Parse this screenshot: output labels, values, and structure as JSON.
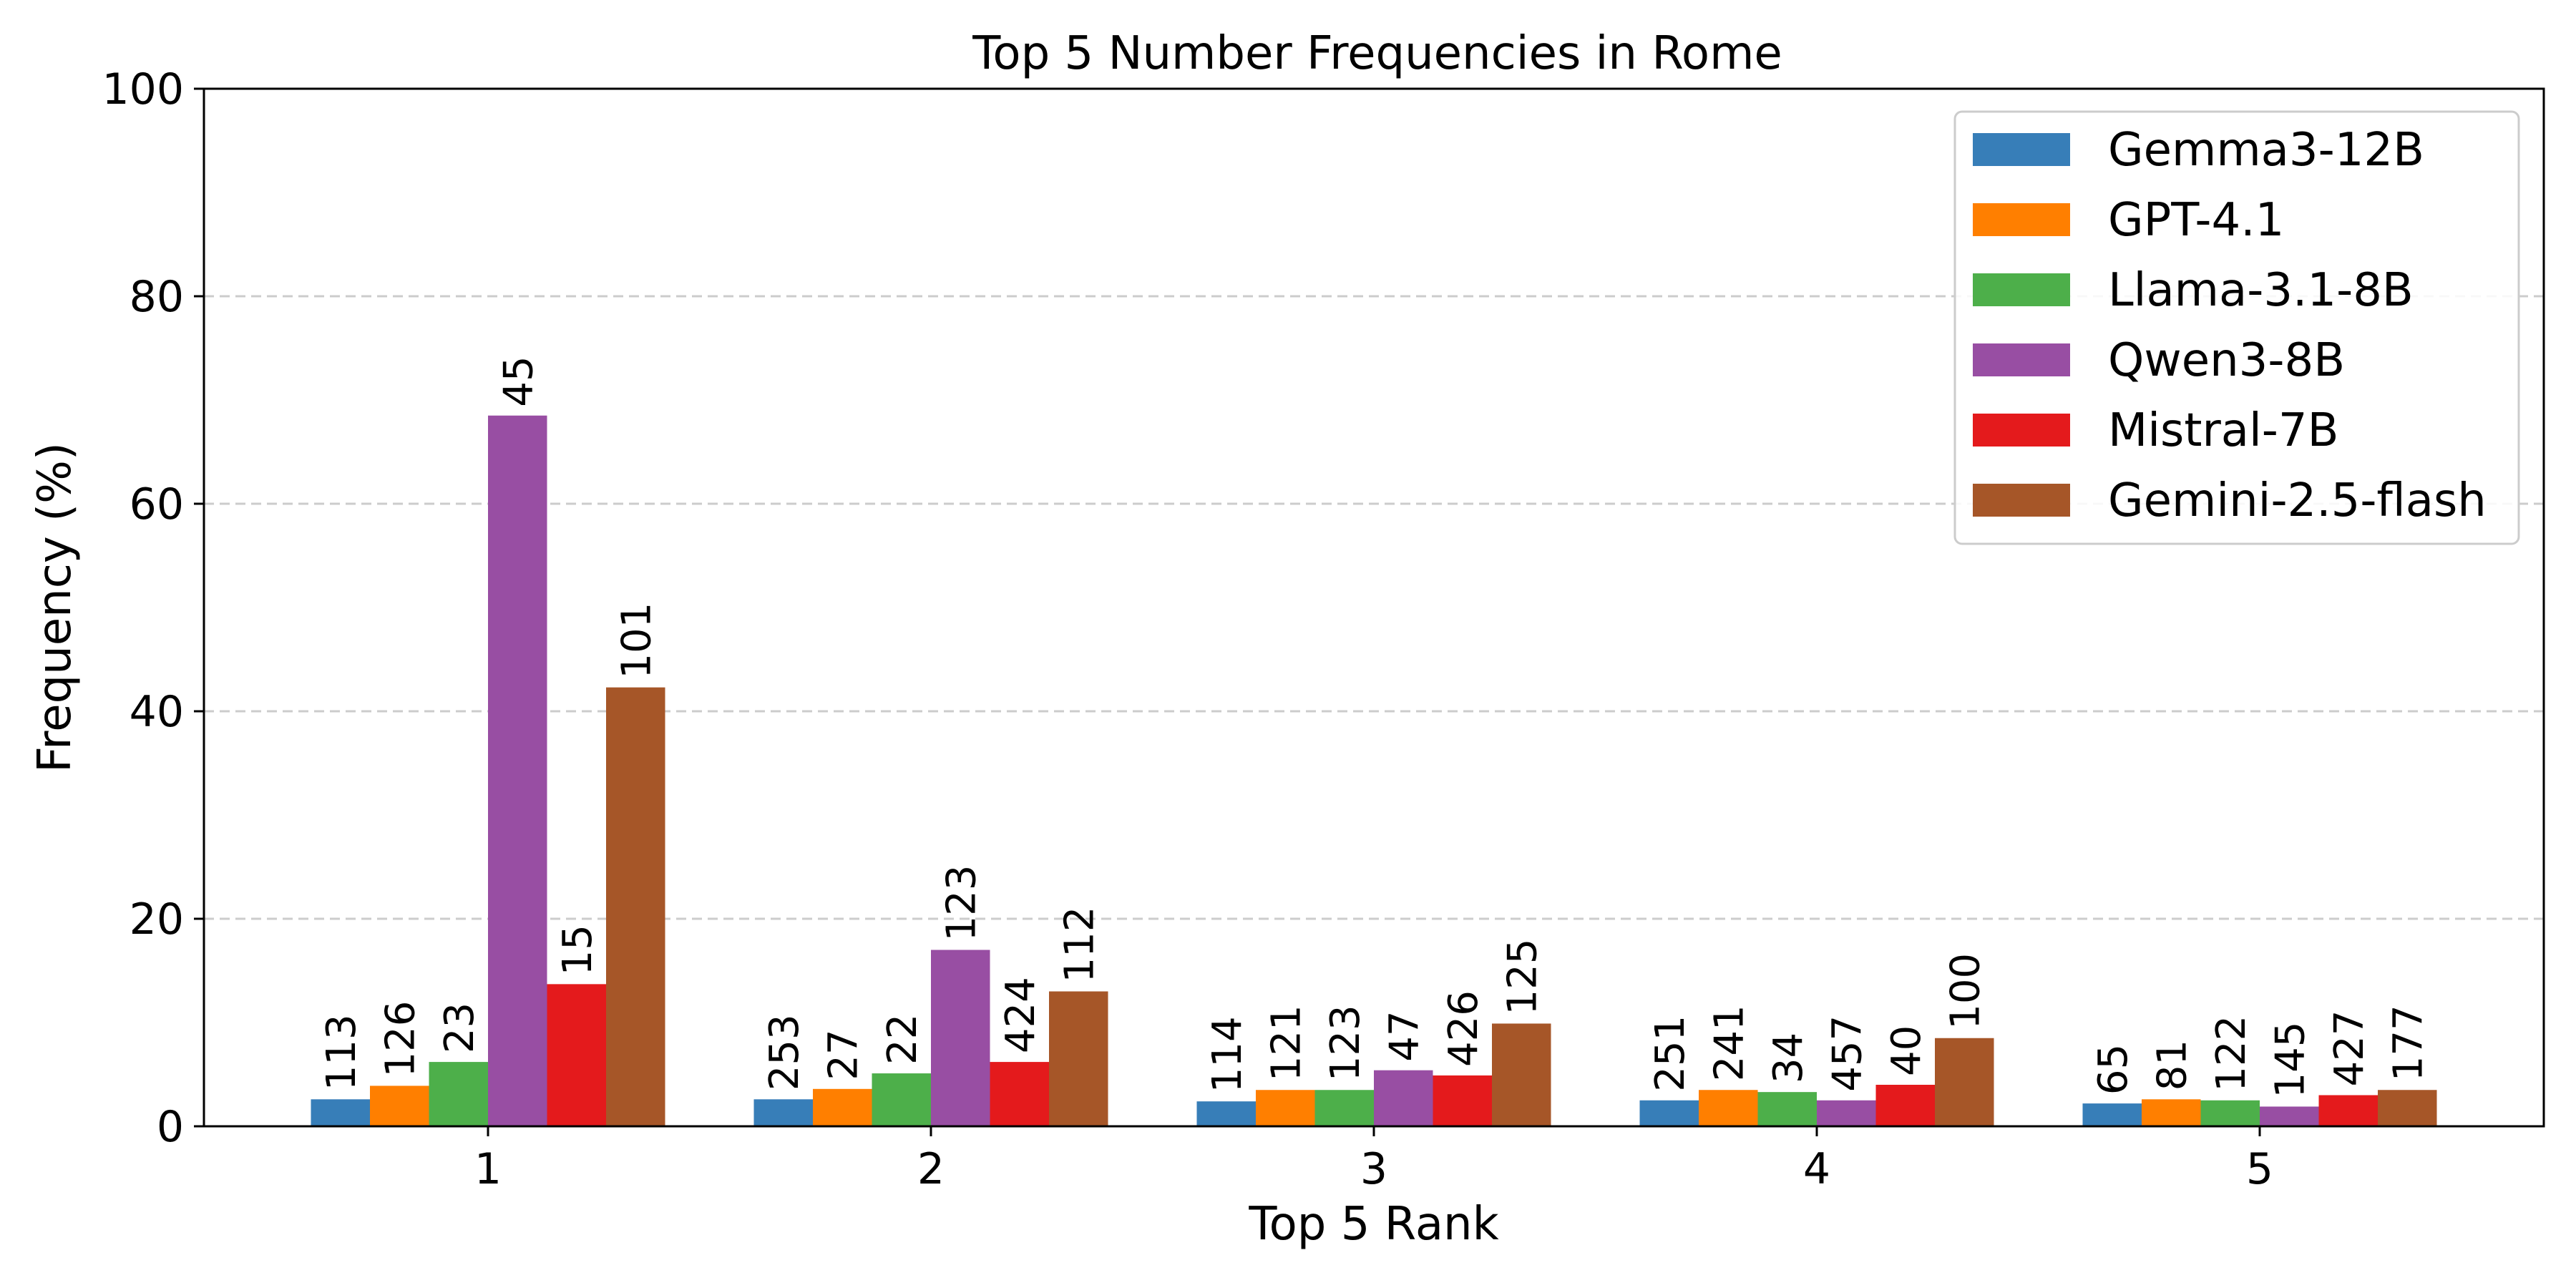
{
  "chart_data": {
    "type": "bar",
    "title": "Top 5 Number Frequencies in Rome",
    "xlabel": "Top 5 Rank",
    "ylabel": "Frequency (%)",
    "categories": [
      "1",
      "2",
      "3",
      "4",
      "5"
    ],
    "ylim": [
      0,
      100
    ],
    "yticks": [
      0,
      20,
      40,
      60,
      80,
      100
    ],
    "grid": "y-dashed",
    "legend_position": "top-right",
    "series": [
      {
        "name": "Gemma3-12B",
        "color": "#377eb8",
        "values": [
          2.6,
          2.6,
          2.4,
          2.5,
          2.2
        ],
        "labels": [
          "113",
          "253",
          "114",
          "251",
          "65"
        ]
      },
      {
        "name": "GPT-4.1",
        "color": "#ff7f00",
        "values": [
          3.9,
          3.6,
          3.5,
          3.5,
          2.6
        ],
        "labels": [
          "126",
          "27",
          "121",
          "241",
          "81"
        ]
      },
      {
        "name": "Llama-3.1-8B",
        "color": "#4daf4a",
        "values": [
          6.2,
          5.1,
          3.5,
          3.3,
          2.5
        ],
        "labels": [
          "23",
          "22",
          "123",
          "34",
          "122"
        ]
      },
      {
        "name": "Qwen3-8B",
        "color": "#984ea3",
        "values": [
          68.5,
          17.0,
          5.4,
          2.5,
          1.9
        ],
        "labels": [
          "45",
          "123",
          "47",
          "457",
          "145"
        ]
      },
      {
        "name": "Mistral-7B",
        "color": "#e41a1c",
        "values": [
          13.7,
          6.2,
          4.9,
          4.0,
          3.0
        ],
        "labels": [
          "15",
          "424",
          "426",
          "40",
          "427"
        ]
      },
      {
        "name": "Gemini-2.5-flash",
        "color": "#a65628",
        "values": [
          42.3,
          13.0,
          9.9,
          8.5,
          3.5
        ],
        "labels": [
          "101",
          "112",
          "125",
          "100",
          "177"
        ]
      }
    ]
  }
}
